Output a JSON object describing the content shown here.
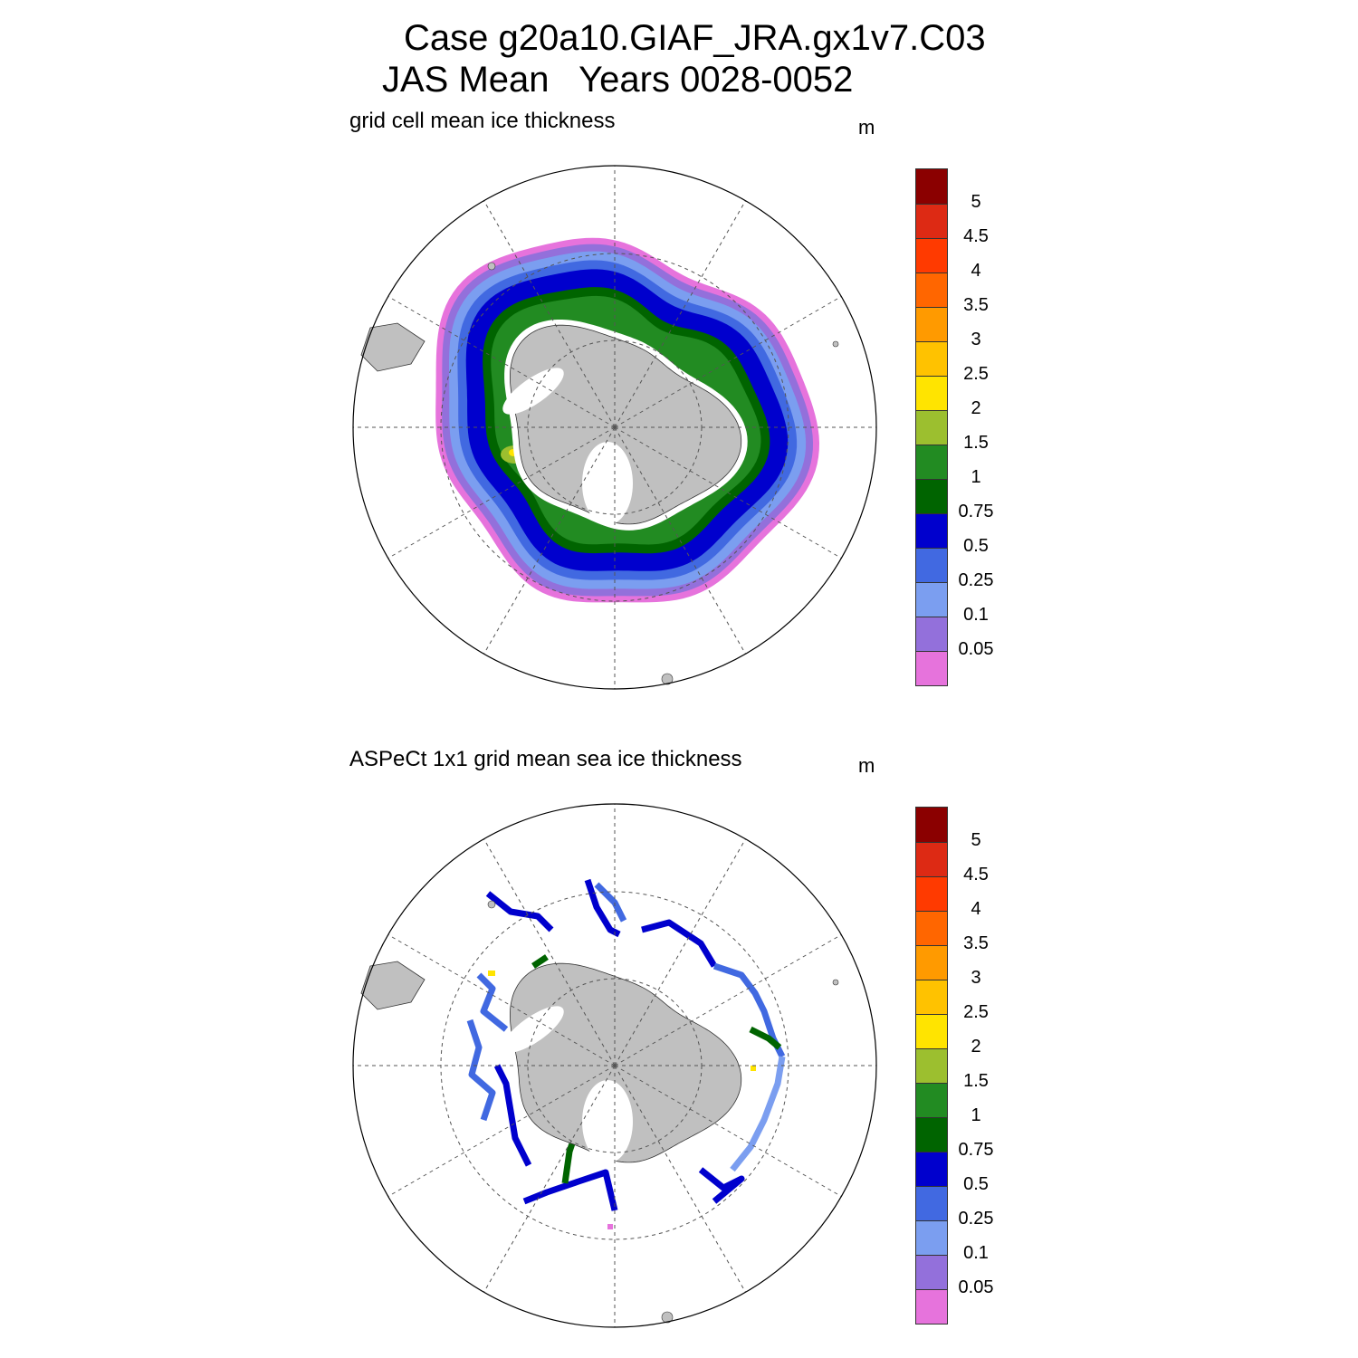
{
  "title": {
    "line1": "Case g20a10.GIAF_JRA.gx1v7.C03",
    "line2": "JAS Mean   Years 0028-0052"
  },
  "panels": [
    {
      "subtitle": "grid cell mean ice thickness",
      "units": "m",
      "kind": "model"
    },
    {
      "subtitle": "ASPeCt 1x1 grid mean sea ice thickness",
      "units": "m",
      "kind": "obs"
    }
  ],
  "colorbar": {
    "labels": [
      "5",
      "4.5",
      "4",
      "3.5",
      "3",
      "2.5",
      "2",
      "1.5",
      "1",
      "0.75",
      "0.5",
      "0.25",
      "0.1",
      "0.05"
    ],
    "colors_top_to_bottom": [
      "#8b0000",
      "#dd2a14",
      "#ff3a00",
      "#ff6600",
      "#ff9a00",
      "#ffc200",
      "#ffe400",
      "#9cbf2f",
      "#228b22",
      "#006400",
      "#0000cd",
      "#4169e1",
      "#7b9ef0",
      "#9370db",
      "#e673dc"
    ]
  },
  "chart_data": {
    "type": "heatmap",
    "projection": "south polar stereographic",
    "variable": "sea ice thickness",
    "units": "m",
    "contour_levels": [
      0.05,
      0.1,
      0.25,
      0.5,
      0.75,
      1,
      1.5,
      2,
      2.5,
      3,
      3.5,
      4,
      4.5,
      5
    ],
    "panel_titles": [
      "grid cell mean ice thickness",
      "ASPeCt 1x1 grid mean sea ice thickness"
    ]
  }
}
